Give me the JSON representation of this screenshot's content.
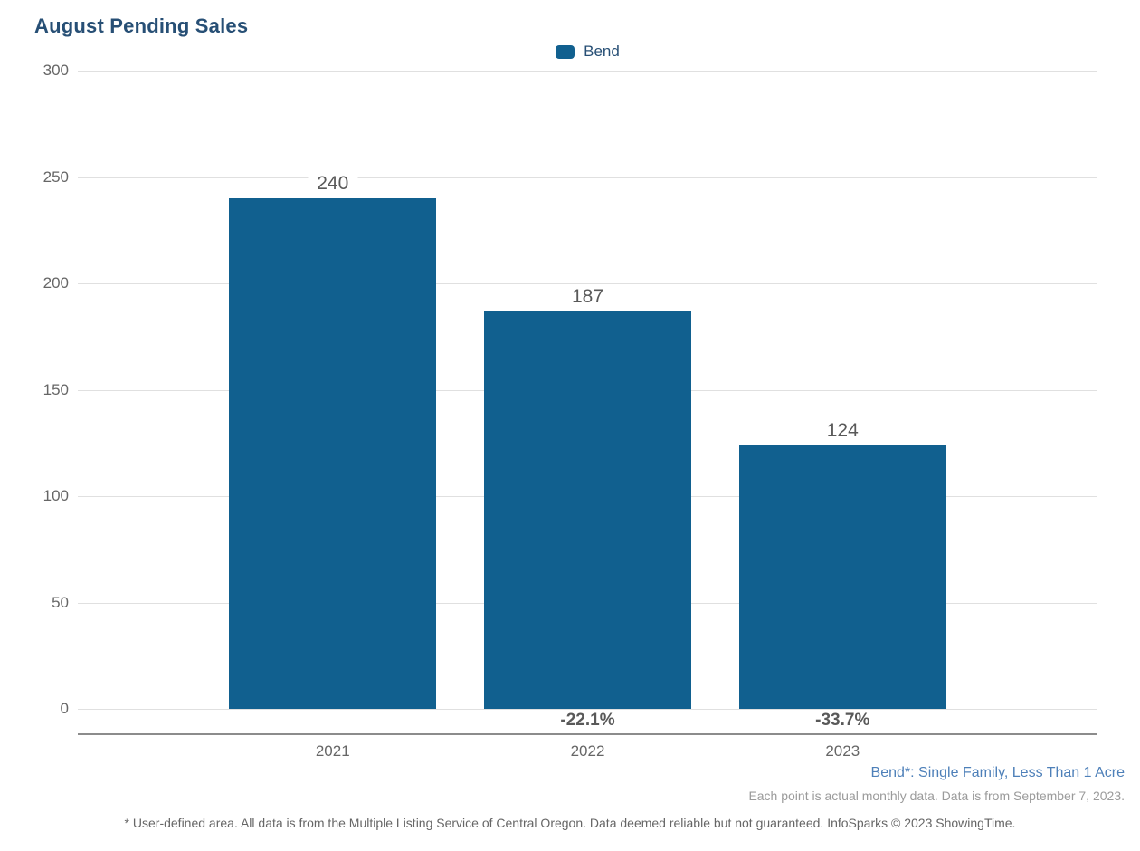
{
  "header": {
    "title": "August Pending Sales"
  },
  "legend": {
    "label": "Bend",
    "swatch_color": "#11608F"
  },
  "chart_data": {
    "type": "bar",
    "title": "August Pending Sales",
    "categories": [
      "2021",
      "2022",
      "2023"
    ],
    "series": [
      {
        "name": "Bend",
        "values": [
          240,
          187,
          124
        ]
      }
    ],
    "value_labels": [
      "240",
      "187",
      "124"
    ],
    "change_labels": [
      "",
      "-22.1%",
      "-33.7%"
    ],
    "ylim": [
      0,
      300
    ],
    "yticks": [
      0,
      50,
      100,
      150,
      200,
      250,
      300
    ],
    "grid": "horizontal",
    "legend_position": "top-center",
    "bar_color": "#11608F"
  },
  "footnotes": {
    "series_definition": "Bend*: Single Family, Less Than 1 Acre",
    "data_note": "Each point is actual monthly data. Data is from September 7, 2023.",
    "disclaimer": "* User-defined area. All data is from the Multiple Listing Service of Central Oregon. Data deemed reliable but not guaranteed. InfoSparks © 2023 ShowingTime."
  },
  "colors": {
    "title": "#274F75",
    "bar": "#11608F",
    "axis_line": "#8C8C8C",
    "gridline": "#E0E0E0",
    "tick_label": "#666666",
    "value_label": "#595959",
    "series_note": "#4E80B9",
    "data_note": "#9B9B9B"
  }
}
